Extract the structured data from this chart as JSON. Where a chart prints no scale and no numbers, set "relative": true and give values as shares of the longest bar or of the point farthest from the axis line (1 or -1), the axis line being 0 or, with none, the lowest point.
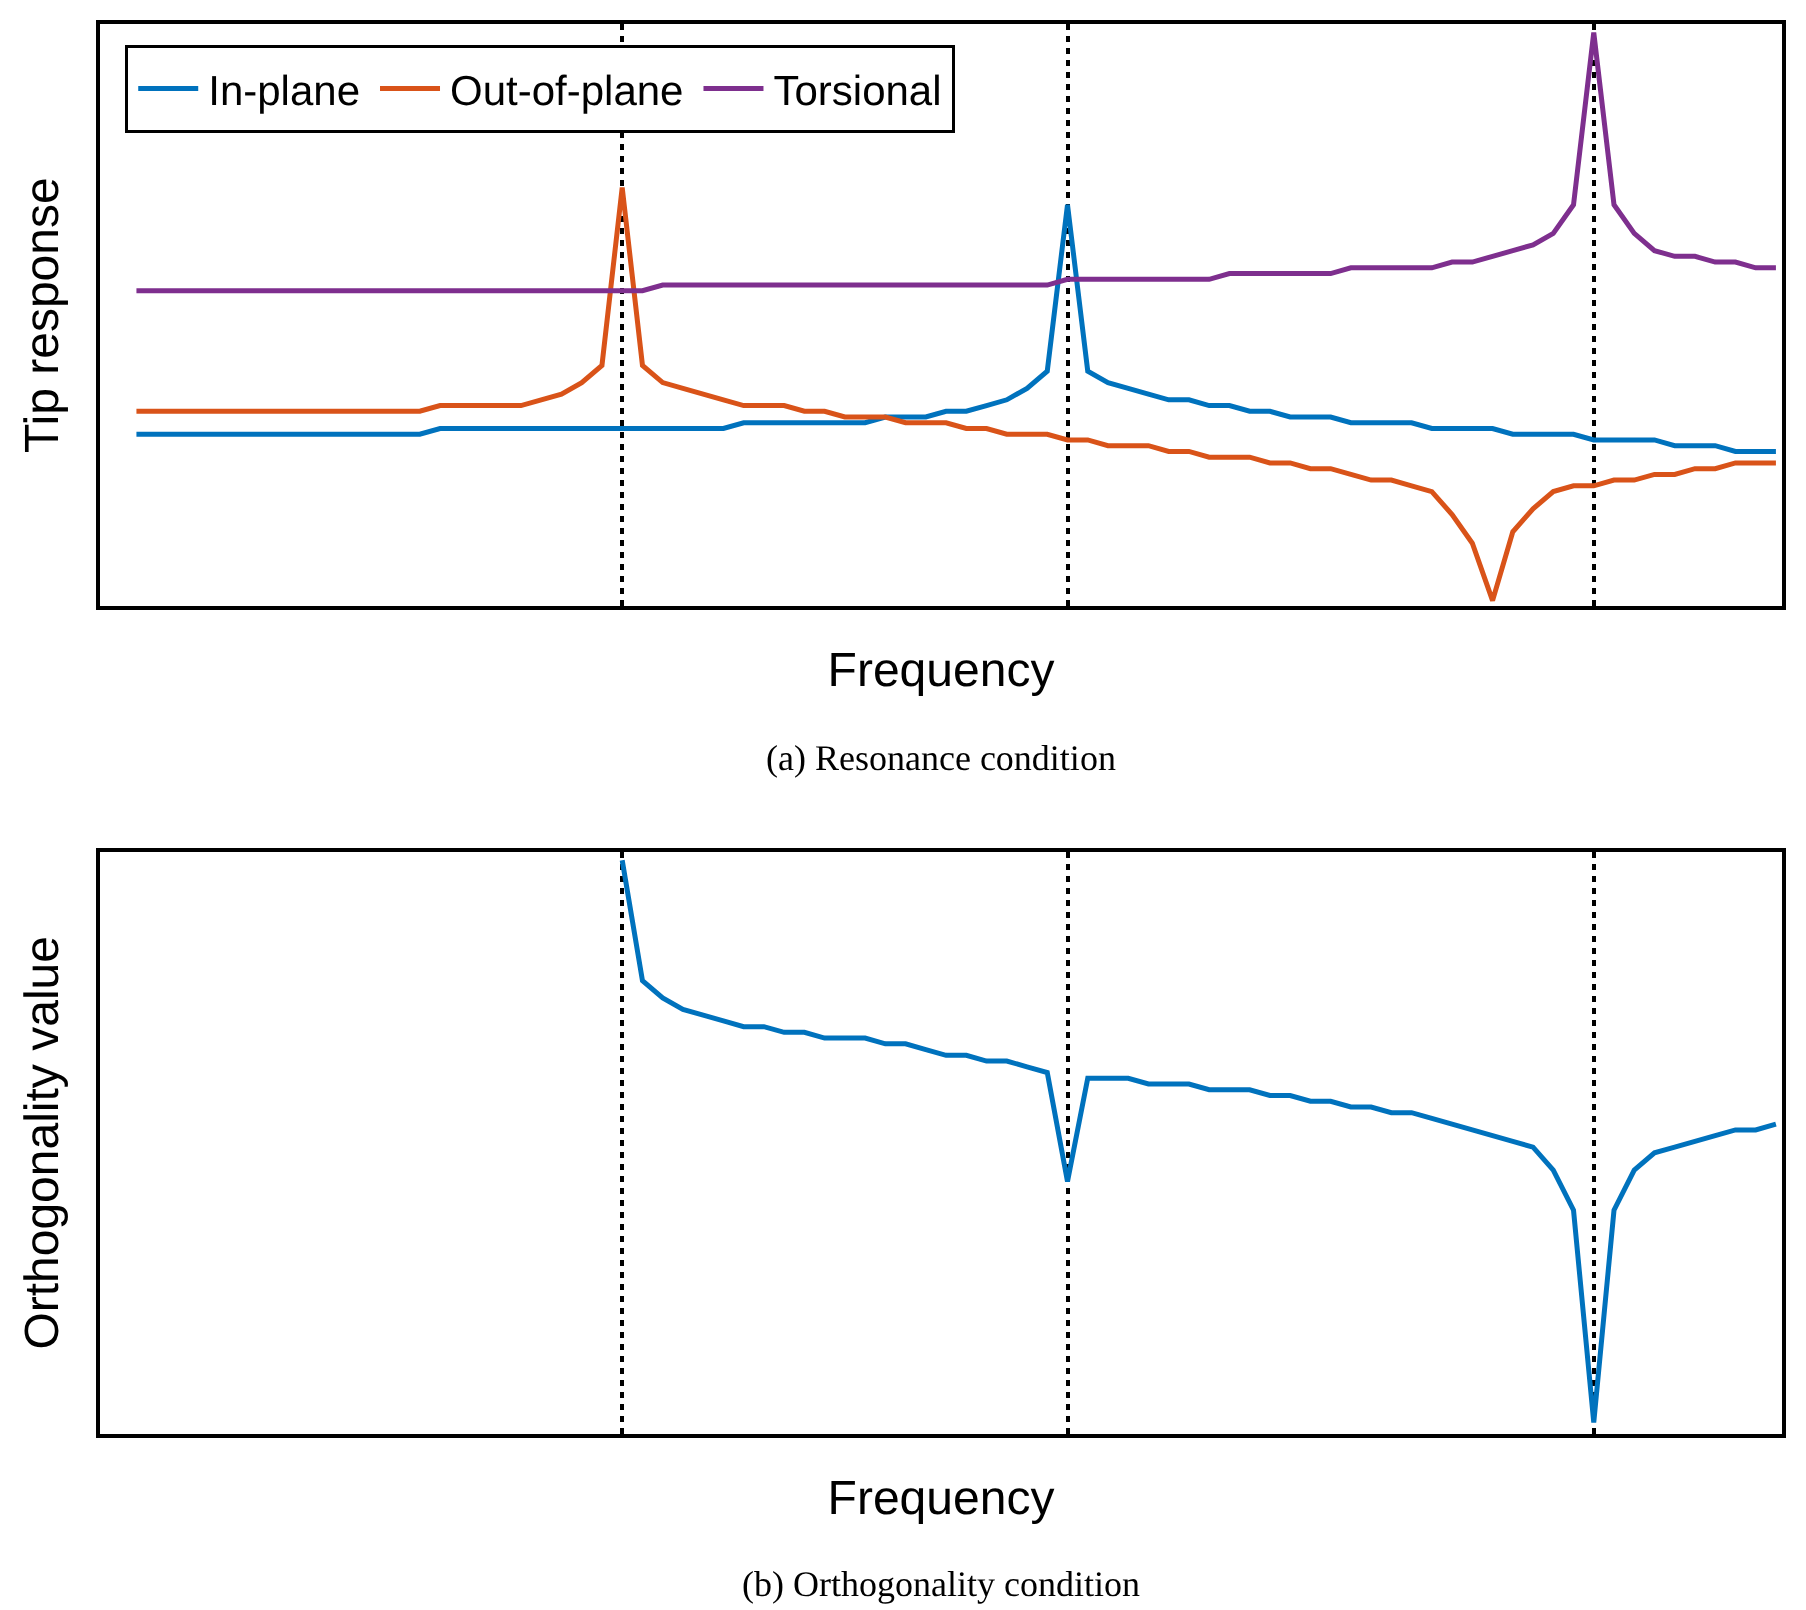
{
  "chart_data": [
    {
      "type": "line",
      "relative": true,
      "xlabel": "Frequency",
      "ylabel": "Tip response",
      "annotations": [
        "(a) Resonance condition"
      ],
      "grid": "x",
      "legend": "top left",
      "line_style": "solid",
      "marker": "none",
      "categories": [
        null,
        null,
        null,
        null,
        null,
        null,
        null,
        null,
        null,
        null,
        null,
        null,
        null,
        null,
        null,
        null,
        null,
        null,
        null,
        null,
        null,
        null,
        null,
        null,
        null,
        null,
        null,
        null,
        null,
        null,
        null,
        null,
        null,
        null,
        null,
        null,
        null,
        null,
        null,
        null,
        null,
        null,
        null,
        null,
        null,
        null,
        null,
        null,
        null,
        null,
        null,
        null,
        null,
        null,
        null,
        null,
        null,
        null,
        null,
        null,
        null,
        null,
        null,
        null,
        null,
        null,
        null,
        null,
        null,
        null,
        null,
        null,
        null,
        null,
        null,
        null,
        null,
        null,
        null,
        null,
        null,
        null
      ],
      "series": [
        {
          "name": "In-plane",
          "color": "#0072bd",
          "values": [
            0.3,
            0.3,
            0.3,
            0.3,
            0.3,
            0.3,
            0.3,
            0.3,
            0.3,
            0.3,
            0.3,
            0.3,
            0.3,
            0.3,
            0.3,
            0.31,
            0.31,
            0.31,
            0.31,
            0.31,
            0.31,
            0.31,
            0.31,
            0.31,
            0.31,
            0.31,
            0.31,
            0.31,
            0.31,
            0.31,
            0.32,
            0.32,
            0.32,
            0.32,
            0.32,
            0.32,
            0.32,
            0.33,
            0.33,
            0.33,
            0.34,
            0.34,
            0.35,
            0.36,
            0.38,
            0.41,
            0.7,
            0.41,
            0.39,
            0.38,
            0.37,
            0.36,
            0.36,
            0.35,
            0.35,
            0.34,
            0.34,
            0.33,
            0.33,
            0.33,
            0.32,
            0.32,
            0.32,
            0.32,
            0.31,
            0.31,
            0.31,
            0.31,
            0.3,
            0.3,
            0.3,
            0.3,
            0.29,
            0.29,
            0.29,
            0.29,
            0.28,
            0.28,
            0.28,
            0.27,
            0.27,
            0.27
          ]
        },
        {
          "name": "Out-of-plane",
          "color": "#d95319",
          "values": [
            0.34,
            0.34,
            0.34,
            0.34,
            0.34,
            0.34,
            0.34,
            0.34,
            0.34,
            0.34,
            0.34,
            0.34,
            0.34,
            0.34,
            0.34,
            0.35,
            0.35,
            0.35,
            0.35,
            0.35,
            0.36,
            0.37,
            0.39,
            0.42,
            0.73,
            0.42,
            0.39,
            0.38,
            0.37,
            0.36,
            0.35,
            0.35,
            0.35,
            0.34,
            0.34,
            0.33,
            0.33,
            0.33,
            0.32,
            0.32,
            0.32,
            0.31,
            0.31,
            0.3,
            0.3,
            0.3,
            0.29,
            0.29,
            0.28,
            0.28,
            0.28,
            0.27,
            0.27,
            0.26,
            0.26,
            0.26,
            0.25,
            0.25,
            0.24,
            0.24,
            0.23,
            0.22,
            0.22,
            0.21,
            0.2,
            0.16,
            0.11,
            0.01,
            0.13,
            0.17,
            0.2,
            0.21,
            0.21,
            0.22,
            0.22,
            0.23,
            0.23,
            0.24,
            0.24,
            0.25,
            0.25,
            0.25
          ]
        },
        {
          "name": "Torsional",
          "color": "#7e2f8e",
          "values": [
            0.55,
            0.55,
            0.55,
            0.55,
            0.55,
            0.55,
            0.55,
            0.55,
            0.55,
            0.55,
            0.55,
            0.55,
            0.55,
            0.55,
            0.55,
            0.55,
            0.55,
            0.55,
            0.55,
            0.55,
            0.55,
            0.55,
            0.55,
            0.55,
            0.55,
            0.55,
            0.56,
            0.56,
            0.56,
            0.56,
            0.56,
            0.56,
            0.56,
            0.56,
            0.56,
            0.56,
            0.56,
            0.56,
            0.56,
            0.56,
            0.56,
            0.56,
            0.56,
            0.56,
            0.56,
            0.56,
            0.57,
            0.57,
            0.57,
            0.57,
            0.57,
            0.57,
            0.57,
            0.57,
            0.58,
            0.58,
            0.58,
            0.58,
            0.58,
            0.58,
            0.59,
            0.59,
            0.59,
            0.59,
            0.59,
            0.6,
            0.6,
            0.61,
            0.62,
            0.63,
            0.65,
            0.7,
            1.0,
            0.7,
            0.65,
            0.62,
            0.61,
            0.61,
            0.6,
            0.6,
            0.59,
            0.59
          ]
        }
      ]
    },
    {
      "type": "line",
      "relative": true,
      "xlabel": "Frequency",
      "ylabel": "Orthogonality value",
      "annotations": [
        "(b) Orthogonality condition"
      ],
      "grid": "x",
      "line_style": "solid",
      "marker": "none",
      "categories": [
        null,
        null,
        null,
        null,
        null,
        null,
        null,
        null,
        null,
        null,
        null,
        null,
        null,
        null,
        null,
        null,
        null,
        null,
        null,
        null,
        null,
        null,
        null,
        null,
        null,
        null,
        null,
        null,
        null,
        null,
        null,
        null,
        null,
        null,
        null,
        null,
        null,
        null,
        null,
        null,
        null,
        null,
        null,
        null,
        null,
        null,
        null,
        null,
        null,
        null,
        null,
        null,
        null,
        null,
        null,
        null,
        null,
        null,
        null,
        null,
        null,
        null,
        null,
        null,
        null,
        null,
        null,
        null,
        null,
        null,
        null,
        null,
        null,
        null,
        null,
        null,
        null,
        null,
        null,
        null,
        null,
        null
      ],
      "series": [
        {
          "color": "#0072bd",
          "values": [
            null,
            null,
            null,
            null,
            null,
            null,
            null,
            null,
            null,
            null,
            null,
            null,
            null,
            null,
            null,
            null,
            null,
            null,
            null,
            null,
            null,
            null,
            null,
            null,
            1.0,
            0.79,
            0.76,
            0.74,
            0.73,
            0.72,
            0.71,
            0.71,
            0.7,
            0.7,
            0.69,
            0.69,
            0.69,
            0.68,
            0.68,
            0.67,
            0.66,
            0.66,
            0.65,
            0.65,
            0.64,
            0.63,
            0.44,
            0.62,
            0.62,
            0.62,
            0.61,
            0.61,
            0.61,
            0.6,
            0.6,
            0.6,
            0.59,
            0.59,
            0.58,
            0.58,
            0.57,
            0.57,
            0.56,
            0.56,
            0.55,
            0.54,
            0.53,
            0.52,
            0.51,
            0.5,
            0.46,
            0.39,
            0.02,
            0.39,
            0.46,
            0.49,
            0.5,
            0.51,
            0.52,
            0.53,
            0.53,
            0.54
          ]
        }
      ]
    }
  ]
}
